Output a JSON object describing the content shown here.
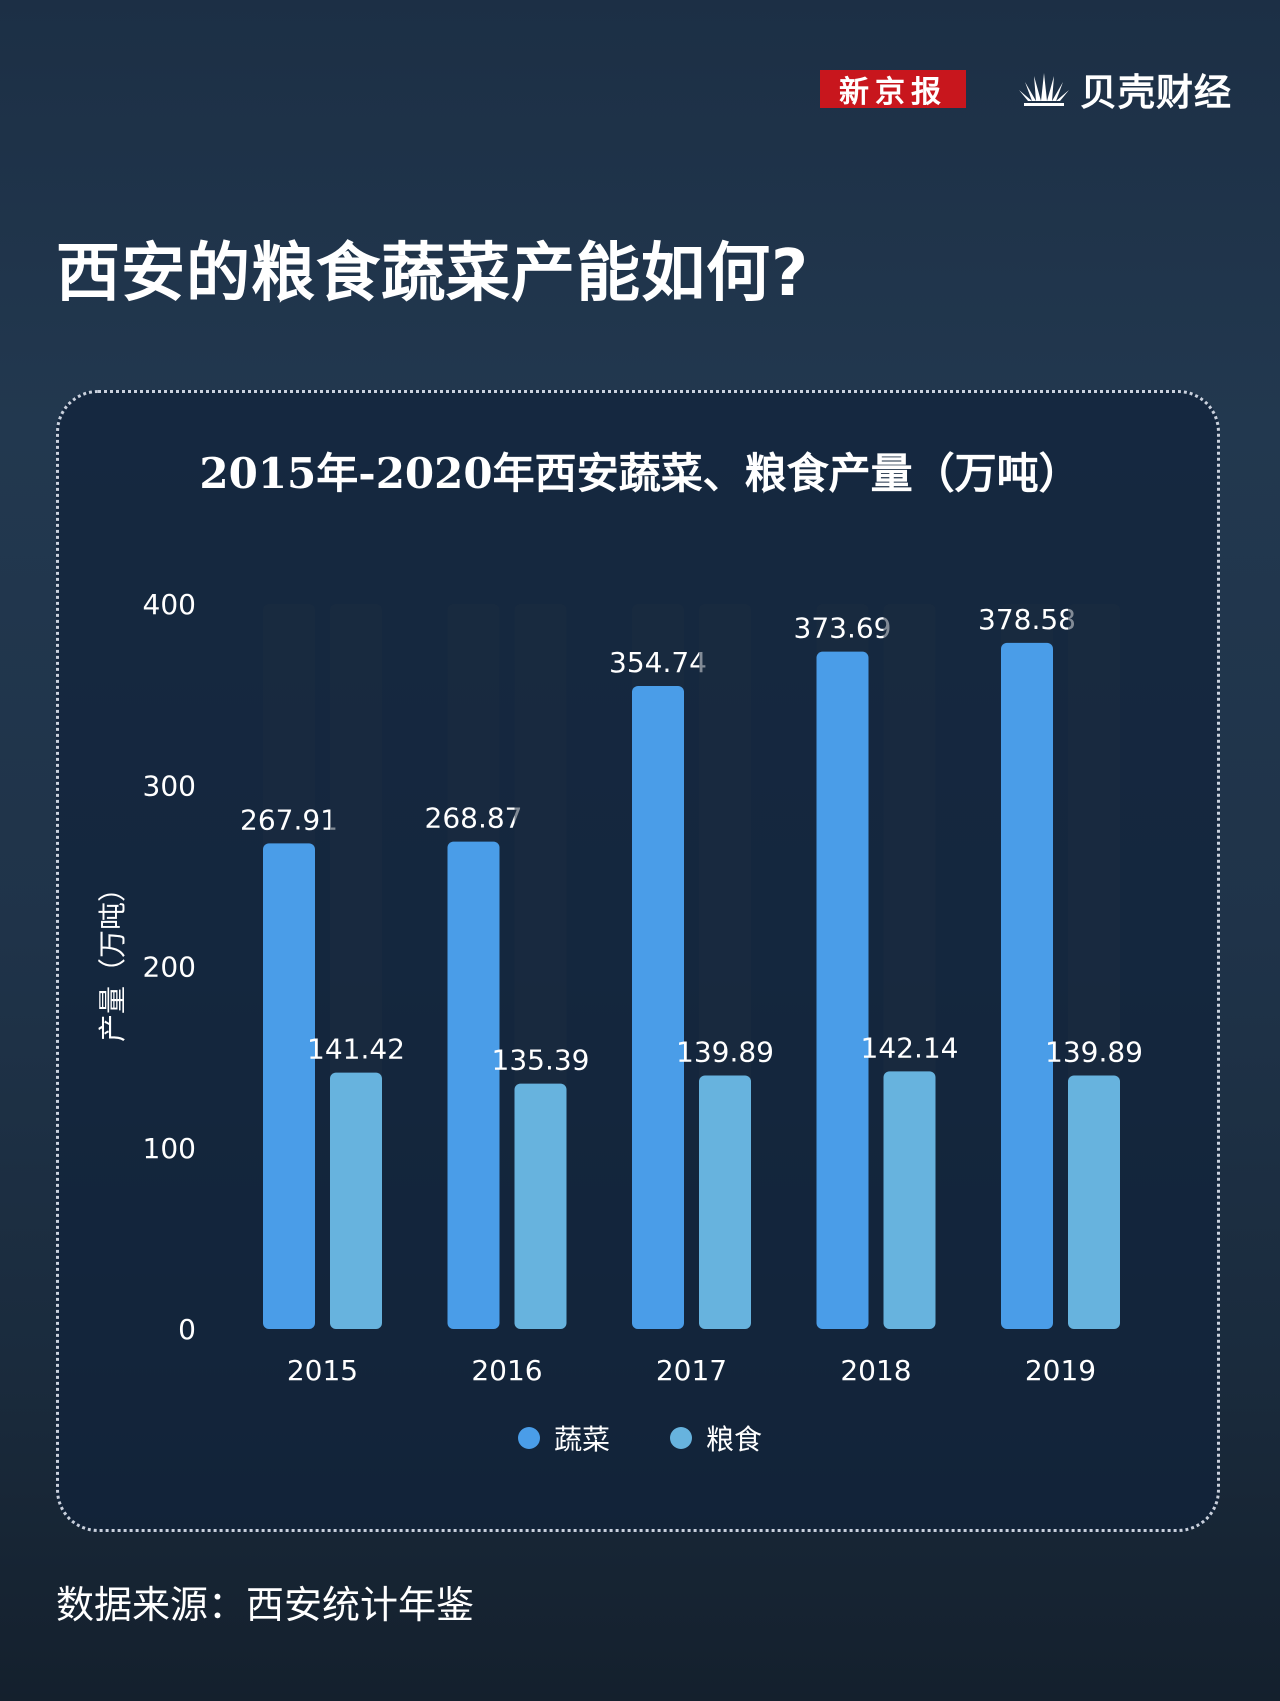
{
  "brand": {
    "xjb_logo": "新京报",
    "bk_logo": "贝壳财经"
  },
  "page_title": "西安的粮食蔬菜产能如何?",
  "source": "数据来源：西安统计年鉴",
  "colors": {
    "vegetables": "#4a9de8",
    "grain": "#67b3de",
    "track": "#1c2c40",
    "brand_red": "#c8161d"
  },
  "chart_data": {
    "type": "bar",
    "title": "2015年-2020年西安蔬菜、粮食产量（万吨）",
    "xlabel": "",
    "ylabel": "产量（万吨）",
    "categories": [
      "2015",
      "2016",
      "2017",
      "2018",
      "2019"
    ],
    "series": [
      {
        "name": "蔬菜",
        "values": [
          267.91,
          268.87,
          354.74,
          373.69,
          378.58
        ],
        "labels": [
          "267.91",
          "268.87",
          "354.74",
          "373.69",
          "378.58"
        ]
      },
      {
        "name": "粮食",
        "values": [
          141.42,
          135.39,
          139.89,
          142.14,
          139.89
        ],
        "labels": [
          "141.42",
          "135.39",
          "139.89",
          "142.14",
          "139.89"
        ]
      }
    ],
    "ylim": [
      0,
      400
    ],
    "yticks": [
      "0",
      "100",
      "200",
      "300",
      "400"
    ],
    "grid": false,
    "legend": "bottom"
  }
}
